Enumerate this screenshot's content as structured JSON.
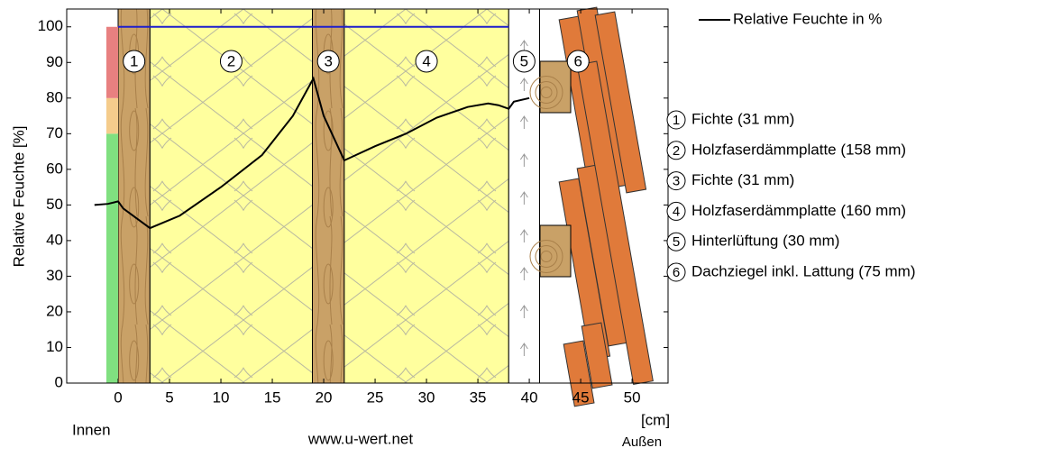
{
  "chart_data": {
    "type": "line",
    "y_label": "Relative Feuchte [%]",
    "x_unit": "[cm]",
    "inside_label": "Innen",
    "outside_label": "Außen",
    "source": "www.u-wert.net",
    "xlim": [
      -5,
      53.5
    ],
    "ylim": [
      0,
      105
    ],
    "xticks": [
      0,
      5,
      10,
      15,
      20,
      25,
      30,
      35,
      40,
      45,
      50
    ],
    "yticks": [
      0,
      10,
      20,
      30,
      40,
      50,
      60,
      70,
      80,
      90,
      100
    ],
    "x": [
      -2.3,
      -1,
      0,
      0.5,
      3.1,
      6,
      10,
      14,
      17,
      19,
      20,
      22,
      25,
      28,
      31,
      34,
      36,
      37,
      38,
      38.5,
      40
    ],
    "series": [
      {
        "name": "Relative Feuchte in %",
        "color": "#000000",
        "values": [
          50,
          50.3,
          51,
          49,
          43.5,
          47,
          55,
          64,
          75,
          85.5,
          75,
          62.5,
          66.5,
          70,
          74.5,
          77.5,
          78.5,
          78,
          77,
          79,
          80
        ]
      }
    ],
    "saturation_line": {
      "value": 100,
      "x": [
        0,
        38
      ],
      "color": "#1f1fcc"
    },
    "comfort_bands": [
      {
        "from": 0,
        "to": 70,
        "color": "#80e080"
      },
      {
        "from": 70,
        "to": 80,
        "color": "#f5cc8c"
      },
      {
        "from": 80,
        "to": 100,
        "color": "#e88080"
      }
    ],
    "layers": [
      {
        "number": "1",
        "label": "Fichte (31 mm)",
        "start": 0,
        "end": 3.1,
        "material": "wood"
      },
      {
        "number": "2",
        "label": "Holzfaserdämmplatte (158 mm)",
        "start": 3.1,
        "end": 18.9,
        "material": "insulation"
      },
      {
        "number": "3",
        "label": "Fichte (31 mm)",
        "start": 18.9,
        "end": 22,
        "material": "wood"
      },
      {
        "number": "4",
        "label": "Holzfaserdämmplatte (160 mm)",
        "start": 22,
        "end": 38,
        "material": "insulation"
      },
      {
        "number": "5",
        "label": "Hinterlüftung (30 mm)",
        "start": 38,
        "end": 41,
        "material": "air"
      },
      {
        "number": "6",
        "label": "Dachziegel inkl. Lattung (75 mm)",
        "start": 41,
        "end": 48.5,
        "material": "tiles"
      }
    ]
  }
}
